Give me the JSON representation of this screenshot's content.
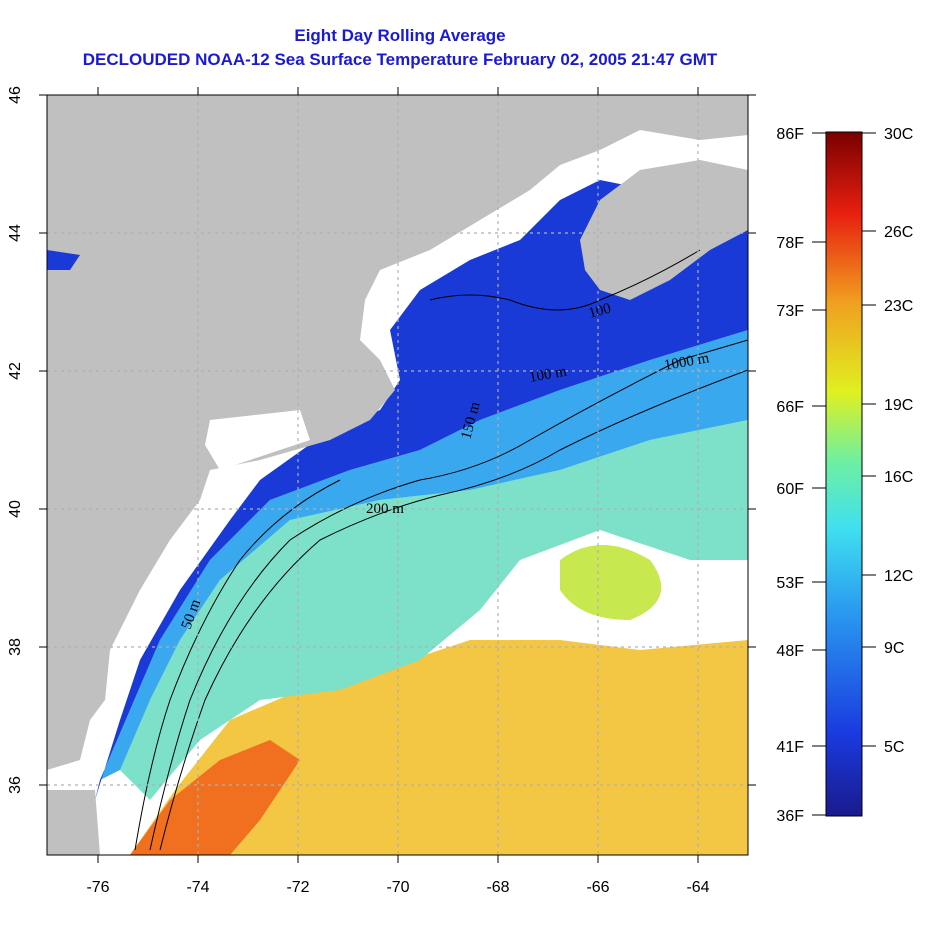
{
  "title": {
    "line1": "Eight Day Rolling Average",
    "line2": "DECLOUDED NOAA-12 Sea Surface Temperature February 02, 2005 21:47 GMT"
  },
  "map": {
    "lon_range": [
      -77,
      -63
    ],
    "lat_range": [
      35,
      46
    ],
    "x_ticks": [
      "-76",
      "-74",
      "-72",
      "-70",
      "-68",
      "-66",
      "-64"
    ],
    "y_ticks": [
      "36",
      "38",
      "40",
      "42",
      "44",
      "46"
    ],
    "contour_labels": [
      "50 m",
      "200 m",
      "100 m",
      "150 m",
      "1000 m",
      "100"
    ],
    "colors": {
      "land": "#c0c0c0",
      "cloud": "#ffffff",
      "cold": "#1a2ad8",
      "cool": "#3fb7f0",
      "mild": "#6fe0c0",
      "warm": "#f5c020",
      "hot": "#f07020",
      "grid": "#b0b0b0"
    }
  },
  "colorbar": {
    "fahrenheit_labels": [
      "86F",
      "78F",
      "73F",
      "66F",
      "60F",
      "53F",
      "48F",
      "41F",
      "36F"
    ],
    "celsius_labels": [
      "30C",
      "26C",
      "23C",
      "19C",
      "16C",
      "12C",
      "9C",
      "5C"
    ]
  }
}
